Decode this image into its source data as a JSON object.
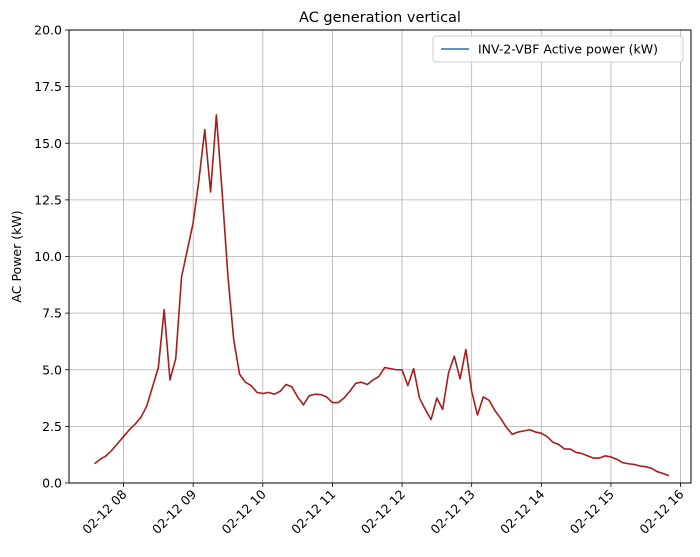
{
  "chart_data": {
    "type": "line",
    "title": "AC generation vertical",
    "xlabel": "",
    "ylabel": "AC Power (kW)",
    "ylim": [
      0,
      20
    ],
    "yticks": [
      "0.0",
      "2.5",
      "5.0",
      "7.5",
      "10.0",
      "12.5",
      "15.0",
      "17.5",
      "20.0"
    ],
    "xticks": [
      "02-12 08",
      "02-12 09",
      "02-12 10",
      "02-12 11",
      "02-12 12",
      "02-12 13",
      "02-12 14",
      "02-12 15",
      "02-12 16"
    ],
    "xlim": [
      "02-12 07:13",
      "02-12 16:09"
    ],
    "grid": true,
    "legend": {
      "location": "upper right",
      "entries": [
        {
          "label": "INV-2-VBF Active power (kW)",
          "color": "#1f77b4"
        }
      ]
    },
    "line_color": "#a51d1d",
    "series": [
      {
        "name": "INV-2-VBF Active power (kW)",
        "points": [
          [
            "02-12 07:35",
            0.85
          ],
          [
            "02-12 07:40",
            1.05
          ],
          [
            "02-12 07:45",
            1.2
          ],
          [
            "02-12 07:50",
            1.45
          ],
          [
            "02-12 07:55",
            1.75
          ],
          [
            "02-12 08:00",
            2.05
          ],
          [
            "02-12 08:05",
            2.35
          ],
          [
            "02-12 08:10",
            2.6
          ],
          [
            "02-12 08:15",
            2.9
          ],
          [
            "02-12 08:20",
            3.4
          ],
          [
            "02-12 08:25",
            4.25
          ],
          [
            "02-12 08:30",
            5.1
          ],
          [
            "02-12 08:35",
            7.65
          ],
          [
            "02-12 08:40",
            4.55
          ],
          [
            "02-12 08:45",
            5.5
          ],
          [
            "02-12 08:50",
            9.1
          ],
          [
            "02-12 08:55",
            10.3
          ],
          [
            "02-12 09:00",
            11.5
          ],
          [
            "02-12 09:05",
            13.4
          ],
          [
            "02-12 09:10",
            15.6
          ],
          [
            "02-12 09:15",
            12.85
          ],
          [
            "02-12 09:20",
            16.25
          ],
          [
            "02-12 09:25",
            12.8
          ],
          [
            "02-12 09:30",
            9.1
          ],
          [
            "02-12 09:35",
            6.3
          ],
          [
            "02-12 09:40",
            4.8
          ],
          [
            "02-12 09:45",
            4.45
          ],
          [
            "02-12 09:50",
            4.3
          ],
          [
            "02-12 09:55",
            4.0
          ],
          [
            "02-12 10:00",
            3.95
          ],
          [
            "02-12 10:05",
            4.0
          ],
          [
            "02-12 10:10",
            3.92
          ],
          [
            "02-12 10:15",
            4.05
          ],
          [
            "02-12 10:20",
            4.35
          ],
          [
            "02-12 10:25",
            4.25
          ],
          [
            "02-12 10:30",
            3.8
          ],
          [
            "02-12 10:35",
            3.45
          ],
          [
            "02-12 10:40",
            3.85
          ],
          [
            "02-12 10:45",
            3.92
          ],
          [
            "02-12 10:50",
            3.9
          ],
          [
            "02-12 10:55",
            3.8
          ],
          [
            "02-12 11:00",
            3.55
          ],
          [
            "02-12 11:05",
            3.55
          ],
          [
            "02-12 11:10",
            3.75
          ],
          [
            "02-12 11:15",
            4.05
          ],
          [
            "02-12 11:20",
            4.4
          ],
          [
            "02-12 11:25",
            4.45
          ],
          [
            "02-12 11:30",
            4.35
          ],
          [
            "02-12 11:35",
            4.55
          ],
          [
            "02-12 11:40",
            4.7
          ],
          [
            "02-12 11:45",
            5.1
          ],
          [
            "02-12 11:50",
            5.05
          ],
          [
            "02-12 11:55",
            5.0
          ],
          [
            "02-12 12:00",
            5.0
          ],
          [
            "02-12 12:05",
            4.3
          ],
          [
            "02-12 12:10",
            5.05
          ],
          [
            "02-12 12:15",
            3.75
          ],
          [
            "02-12 12:20",
            3.25
          ],
          [
            "02-12 12:25",
            2.8
          ],
          [
            "02-12 12:30",
            3.75
          ],
          [
            "02-12 12:35",
            3.25
          ],
          [
            "02-12 12:40",
            4.85
          ],
          [
            "02-12 12:45",
            5.6
          ],
          [
            "02-12 12:50",
            4.6
          ],
          [
            "02-12 12:55",
            5.9
          ],
          [
            "02-12 13:00",
            4.05
          ],
          [
            "02-12 13:05",
            3.0
          ],
          [
            "02-12 13:10",
            3.8
          ],
          [
            "02-12 13:15",
            3.65
          ],
          [
            "02-12 13:20",
            3.2
          ],
          [
            "02-12 13:25",
            2.85
          ],
          [
            "02-12 13:30",
            2.45
          ],
          [
            "02-12 13:35",
            2.15
          ],
          [
            "02-12 13:40",
            2.25
          ],
          [
            "02-12 13:45",
            2.3
          ],
          [
            "02-12 13:50",
            2.35
          ],
          [
            "02-12 13:55",
            2.25
          ],
          [
            "02-12 14:00",
            2.2
          ],
          [
            "02-12 14:05",
            2.05
          ],
          [
            "02-12 14:10",
            1.8
          ],
          [
            "02-12 14:15",
            1.7
          ],
          [
            "02-12 14:20",
            1.5
          ],
          [
            "02-12 14:25",
            1.5
          ],
          [
            "02-12 14:30",
            1.35
          ],
          [
            "02-12 14:35",
            1.3
          ],
          [
            "02-12 14:40",
            1.2
          ],
          [
            "02-12 14:45",
            1.1
          ],
          [
            "02-12 14:50",
            1.1
          ],
          [
            "02-12 14:55",
            1.2
          ],
          [
            "02-12 15:00",
            1.15
          ],
          [
            "02-12 15:05",
            1.05
          ],
          [
            "02-12 15:10",
            0.9
          ],
          [
            "02-12 15:15",
            0.85
          ],
          [
            "02-12 15:20",
            0.82
          ],
          [
            "02-12 15:25",
            0.75
          ],
          [
            "02-12 15:30",
            0.72
          ],
          [
            "02-12 15:35",
            0.65
          ],
          [
            "02-12 15:40",
            0.5
          ],
          [
            "02-12 15:45",
            0.42
          ],
          [
            "02-12 15:50",
            0.32
          ]
        ]
      }
    ]
  }
}
